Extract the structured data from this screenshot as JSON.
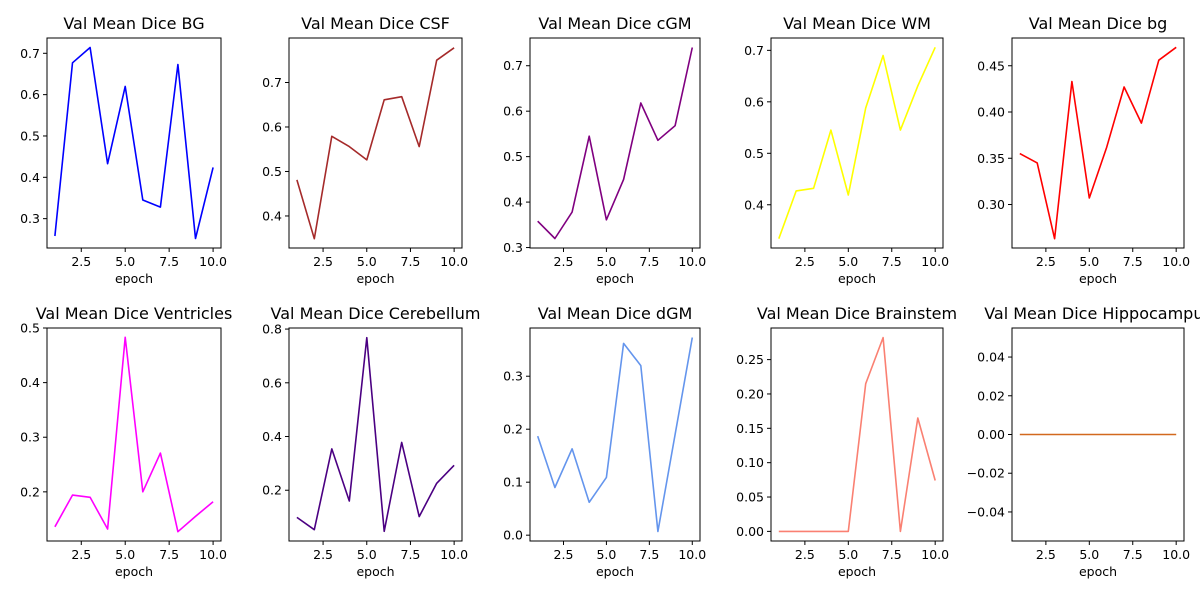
{
  "chart_data": [
    {
      "type": "line",
      "title": "Val Mean Dice BG",
      "xlabel": "epoch",
      "color": "#0000ff",
      "x": [
        1,
        2,
        3,
        4,
        5,
        6,
        7,
        8,
        9,
        10
      ],
      "values": [
        0.258,
        0.677,
        0.714,
        0.433,
        0.62,
        0.345,
        0.328,
        0.673,
        0.252,
        0.424
      ],
      "xlim": [
        0.55,
        10.45
      ],
      "ylim": [
        0.229,
        0.737
      ],
      "xticks": [
        "2.5",
        "5.0",
        "7.5",
        "10.0"
      ],
      "xtick_values": [
        2.5,
        5.0,
        7.5,
        10.0
      ],
      "yticks": [
        "0.3",
        "0.4",
        "0.5",
        "0.6",
        "0.7"
      ],
      "ytick_values": [
        0.3,
        0.4,
        0.5,
        0.6,
        0.7
      ]
    },
    {
      "type": "line",
      "title": "Val Mean Dice CSF",
      "xlabel": "epoch",
      "color": "#a52a2a",
      "x": [
        1,
        2,
        3,
        4,
        5,
        6,
        7,
        8,
        9,
        10
      ],
      "values": [
        0.481,
        0.349,
        0.579,
        0.556,
        0.526,
        0.661,
        0.668,
        0.556,
        0.75,
        0.778
      ],
      "xlim": [
        0.55,
        10.45
      ],
      "ylim": [
        0.328,
        0.8
      ],
      "xticks": [
        "2.5",
        "5.0",
        "7.5",
        "10.0"
      ],
      "xtick_values": [
        2.5,
        5.0,
        7.5,
        10.0
      ],
      "yticks": [
        "0.4",
        "0.5",
        "0.6",
        "0.7"
      ],
      "ytick_values": [
        0.4,
        0.5,
        0.6,
        0.7
      ]
    },
    {
      "type": "line",
      "title": "Val Mean Dice cGM",
      "xlabel": "epoch",
      "color": "#800080",
      "x": [
        1,
        2,
        3,
        4,
        5,
        6,
        7,
        8,
        9,
        10
      ],
      "values": [
        0.358,
        0.32,
        0.378,
        0.545,
        0.361,
        0.45,
        0.618,
        0.536,
        0.568,
        0.74
      ],
      "xlim": [
        0.55,
        10.45
      ],
      "ylim": [
        0.299,
        0.761
      ],
      "xticks": [
        "2.5",
        "5.0",
        "7.5",
        "10.0"
      ],
      "xtick_values": [
        2.5,
        5.0,
        7.5,
        10.0
      ],
      "yticks": [
        "0.3",
        "0.4",
        "0.5",
        "0.6",
        "0.7"
      ],
      "ytick_values": [
        0.3,
        0.4,
        0.5,
        0.6,
        0.7
      ]
    },
    {
      "type": "line",
      "title": "Val Mean Dice WM",
      "xlabel": "epoch",
      "color": "#ffff00",
      "x": [
        1,
        2,
        3,
        4,
        5,
        6,
        7,
        8,
        9,
        10
      ],
      "values": [
        0.334,
        0.427,
        0.432,
        0.545,
        0.419,
        0.588,
        0.69,
        0.545,
        0.631,
        0.706
      ],
      "xlim": [
        0.55,
        10.45
      ],
      "ylim": [
        0.316,
        0.724
      ],
      "xticks": [
        "2.5",
        "5.0",
        "7.5",
        "10.0"
      ],
      "xtick_values": [
        2.5,
        5.0,
        7.5,
        10.0
      ],
      "yticks": [
        "0.4",
        "0.5",
        "0.6",
        "0.7"
      ],
      "ytick_values": [
        0.4,
        0.5,
        0.6,
        0.7
      ]
    },
    {
      "type": "line",
      "title": "Val Mean Dice bg",
      "xlabel": "epoch",
      "color": "#ff0000",
      "x": [
        1,
        2,
        3,
        4,
        5,
        6,
        7,
        8,
        9,
        10
      ],
      "values": [
        0.355,
        0.345,
        0.263,
        0.433,
        0.307,
        0.362,
        0.427,
        0.388,
        0.456,
        0.47
      ],
      "xlim": [
        0.55,
        10.45
      ],
      "ylim": [
        0.253,
        0.48
      ],
      "xticks": [
        "2.5",
        "5.0",
        "7.5",
        "10.0"
      ],
      "xtick_values": [
        2.5,
        5.0,
        7.5,
        10.0
      ],
      "yticks": [
        "0.30",
        "0.35",
        "0.40",
        "0.45"
      ],
      "ytick_values": [
        0.3,
        0.35,
        0.4,
        0.45
      ]
    },
    {
      "type": "line",
      "title": "Val Mean Dice Ventricles",
      "xlabel": "epoch",
      "color": "#ff00ff",
      "x": [
        1,
        2,
        3,
        4,
        5,
        6,
        7,
        8,
        9,
        10
      ],
      "values": [
        0.136,
        0.194,
        0.19,
        0.132,
        0.483,
        0.2,
        0.271,
        0.127,
        0.155,
        0.182
      ],
      "xlim": [
        0.55,
        10.45
      ],
      "ylim": [
        0.11,
        0.5
      ],
      "xticks": [
        "2.5",
        "5.0",
        "7.5",
        "10.0"
      ],
      "xtick_values": [
        2.5,
        5.0,
        7.5,
        10.0
      ],
      "yticks": [
        "0.2",
        "0.3",
        "0.4",
        "0.5"
      ],
      "ytick_values": [
        0.2,
        0.3,
        0.4,
        0.5
      ]
    },
    {
      "type": "line",
      "title": "Val Mean Dice Cerebellum",
      "xlabel": "epoch",
      "color": "#4b0082",
      "x": [
        1,
        2,
        3,
        4,
        5,
        6,
        7,
        8,
        9,
        10
      ],
      "values": [
        0.099,
        0.053,
        0.354,
        0.16,
        0.768,
        0.047,
        0.378,
        0.102,
        0.226,
        0.293
      ],
      "xlim": [
        0.55,
        10.45
      ],
      "ylim": [
        0.011,
        0.804
      ],
      "xticks": [
        "2.5",
        "5.0",
        "7.5",
        "10.0"
      ],
      "xtick_values": [
        2.5,
        5.0,
        7.5,
        10.0
      ],
      "yticks": [
        "0.2",
        "0.4",
        "0.6",
        "0.8"
      ],
      "ytick_values": [
        0.2,
        0.4,
        0.6,
        0.8
      ]
    },
    {
      "type": "line",
      "title": "Val Mean Dice dGM",
      "xlabel": "epoch",
      "color": "#6495ed",
      "x": [
        1,
        2,
        3,
        4,
        5,
        6,
        7,
        8,
        9,
        10
      ],
      "values": [
        0.187,
        0.09,
        0.163,
        0.062,
        0.109,
        0.362,
        0.32,
        0.007,
        0.19,
        0.373
      ],
      "xlim": [
        0.55,
        10.45
      ],
      "ylim": [
        -0.011,
        0.391
      ],
      "xticks": [
        "2.5",
        "5.0",
        "7.5",
        "10.0"
      ],
      "xtick_values": [
        2.5,
        5.0,
        7.5,
        10.0
      ],
      "yticks": [
        "0.0",
        "0.1",
        "0.2",
        "0.3"
      ],
      "ytick_values": [
        0.0,
        0.1,
        0.2,
        0.3
      ]
    },
    {
      "type": "line",
      "title": "Val Mean Dice Brainstem",
      "xlabel": "epoch",
      "color": "#fa8072",
      "x": [
        1,
        2,
        3,
        4,
        5,
        6,
        7,
        8,
        9,
        10
      ],
      "values": [
        0.0,
        0.0,
        0.0,
        0.0,
        0.0,
        0.215,
        0.282,
        0.0,
        0.165,
        0.074
      ],
      "xlim": [
        0.55,
        10.45
      ],
      "ylim": [
        -0.014,
        0.296
      ],
      "xticks": [
        "2.5",
        "5.0",
        "7.5",
        "10.0"
      ],
      "xtick_values": [
        2.5,
        5.0,
        7.5,
        10.0
      ],
      "yticks": [
        "0.00",
        "0.05",
        "0.10",
        "0.15",
        "0.20",
        "0.25"
      ],
      "ytick_values": [
        0.0,
        0.05,
        0.1,
        0.15,
        0.2,
        0.25
      ]
    },
    {
      "type": "line",
      "title": "Val Mean Dice Hippocampus",
      "xlabel": "epoch",
      "color": "#d2691e",
      "x": [
        1,
        2,
        3,
        4,
        5,
        6,
        7,
        8,
        9,
        10
      ],
      "values": [
        0,
        0,
        0,
        0,
        0,
        0,
        0,
        0,
        0,
        0
      ],
      "xlim": [
        0.55,
        10.45
      ],
      "ylim": [
        -0.055,
        0.055
      ],
      "xticks": [
        "2.5",
        "5.0",
        "7.5",
        "10.0"
      ],
      "xtick_values": [
        2.5,
        5.0,
        7.5,
        10.0
      ],
      "yticks": [
        "−0.04",
        "−0.02",
        "0.00",
        "0.02",
        "0.04"
      ],
      "ytick_values": [
        -0.04,
        -0.02,
        0.0,
        0.02,
        0.04
      ]
    }
  ]
}
